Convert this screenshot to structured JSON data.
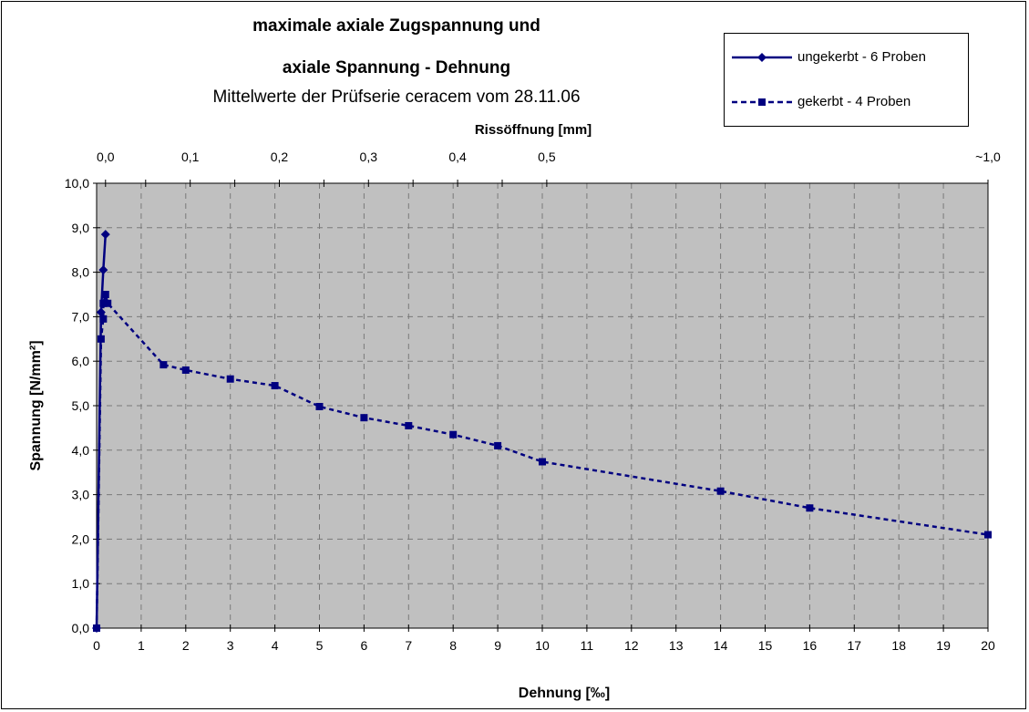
{
  "chart_data": {
    "type": "line",
    "title": "maximale axiale Zugspannung und",
    "title_line2": "axiale Spannung - Dehnung",
    "subtitle": "Mittelwerte der Prüfserie ceracem vom 28.11.06",
    "xlabel": "Dehnung [‰]",
    "ylabel": "Spannung [N/mm²]",
    "secondary_xlabel": "Rissöffnung [mm]",
    "xlim": [
      0,
      20
    ],
    "ylim": [
      0,
      10
    ],
    "x_ticks": [
      "0",
      "1",
      "2",
      "3",
      "4",
      "5",
      "6",
      "7",
      "8",
      "9",
      "10",
      "11",
      "12",
      "13",
      "14",
      "15",
      "16",
      "17",
      "18",
      "19",
      "20"
    ],
    "y_ticks": [
      "0,0",
      "1,0",
      "2,0",
      "3,0",
      "4,0",
      "5,0",
      "6,0",
      "7,0",
      "8,0",
      "9,0",
      "10,0"
    ],
    "secondary_x_ticks": [
      {
        "label": "0,0",
        "at_strain": 0.2
      },
      {
        "label": "0,1",
        "at_strain": 2.1
      },
      {
        "label": "0,2",
        "at_strain": 4.1
      },
      {
        "label": "0,3",
        "at_strain": 6.1
      },
      {
        "label": "0,4",
        "at_strain": 8.1
      },
      {
        "label": "0,5",
        "at_strain": 10.1
      },
      {
        "label": "~1,0",
        "at_strain": 20.0
      }
    ],
    "plot_background": "#c0c0c0",
    "grid": true,
    "legend_position": "top-right",
    "series": [
      {
        "name": "ungekerbt - 6 Proben",
        "color": "#000080",
        "line_style": "solid",
        "marker": "diamond",
        "x": [
          0.0,
          0.1,
          0.15,
          0.2
        ],
        "y": [
          0.0,
          7.1,
          8.05,
          8.85
        ]
      },
      {
        "name": "gekerbt - 4 Proben",
        "color": "#000080",
        "line_style": "dashed",
        "marker": "square",
        "x": [
          0.0,
          0.1,
          0.15,
          0.15,
          0.2,
          0.25,
          1.5,
          2.0,
          3.0,
          4.0,
          5.0,
          6.0,
          7.0,
          8.0,
          9.0,
          10.0,
          14.0,
          16.0,
          20.0
        ],
        "y": [
          0.0,
          6.5,
          6.95,
          7.3,
          7.5,
          7.3,
          5.92,
          5.8,
          5.6,
          5.45,
          4.98,
          4.73,
          4.55,
          4.35,
          4.1,
          3.74,
          3.08,
          2.7,
          2.1
        ]
      }
    ]
  }
}
